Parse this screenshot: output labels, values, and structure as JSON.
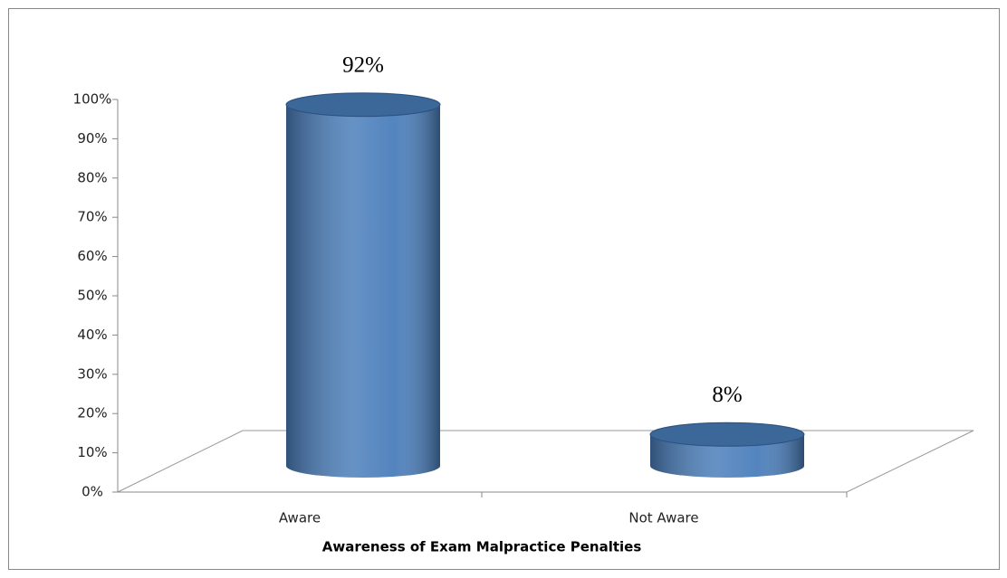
{
  "chart_data": {
    "type": "bar3d",
    "x_label": "Awareness of Exam Malpractice Penalties",
    "categories": [
      "Aware",
      "Not Aware"
    ],
    "values": [
      92,
      8
    ],
    "value_labels": [
      "92%",
      "8%"
    ],
    "color": "#4a7ebb",
    "ylim": [
      0,
      100
    ],
    "yticks": [
      {
        "value": 0,
        "label": "0%"
      },
      {
        "value": 10,
        "label": "10%"
      },
      {
        "value": 20,
        "label": "20%"
      },
      {
        "value": 30,
        "label": "30%"
      },
      {
        "value": 40,
        "label": "40%"
      },
      {
        "value": 50,
        "label": "50%"
      },
      {
        "value": 60,
        "label": "60%"
      },
      {
        "value": 70,
        "label": "70%"
      },
      {
        "value": 80,
        "label": "80%"
      },
      {
        "value": 90,
        "label": "90%"
      },
      {
        "value": 100,
        "label": "100%"
      }
    ]
  }
}
